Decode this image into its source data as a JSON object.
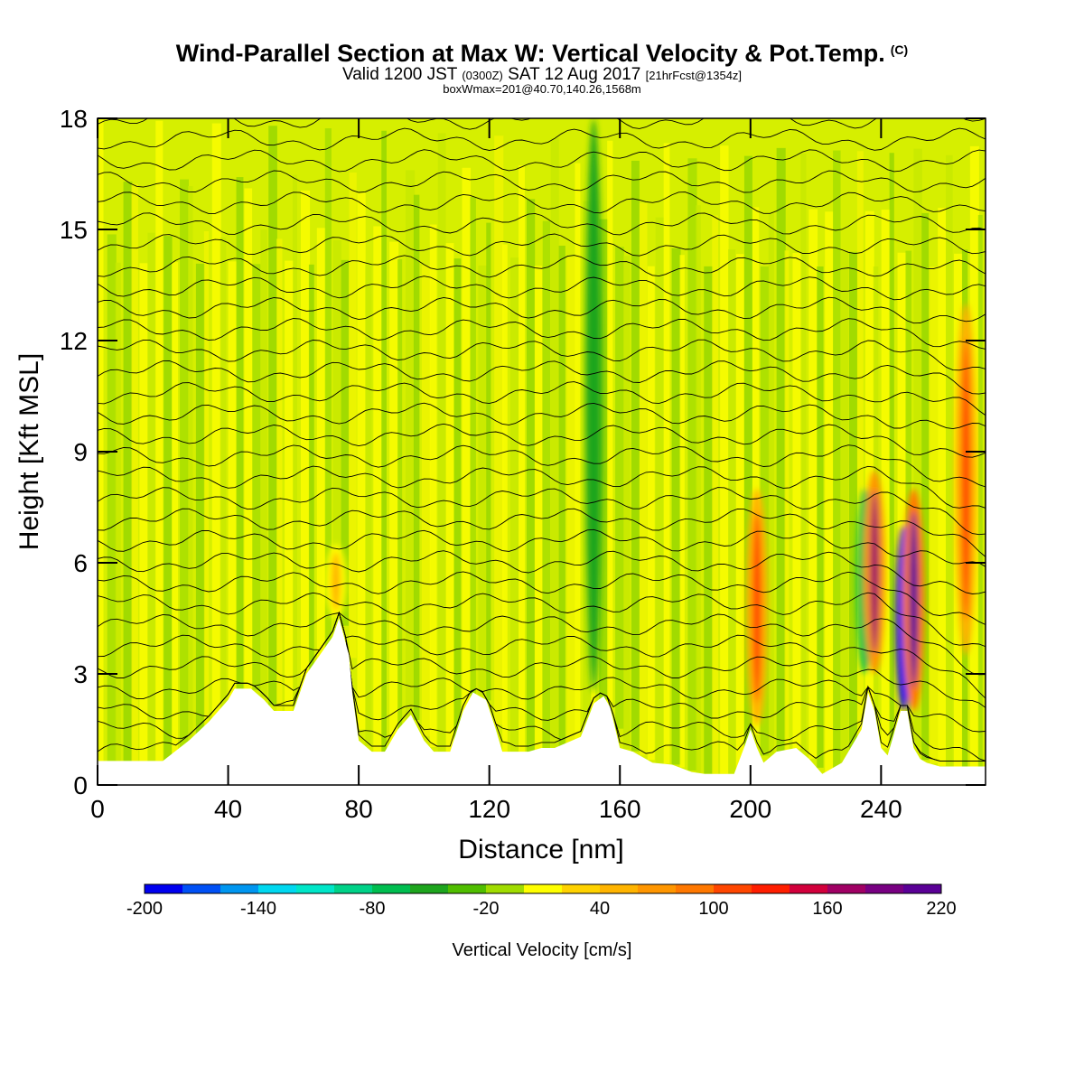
{
  "header": {
    "title": "Wind-Parallel Section at Max W: Vertical Velocity & Pot.Temp.",
    "title_mark": "(C)",
    "valid_prefix": "Valid 1200 JST",
    "valid_utc": "(0300Z)",
    "valid_date": "SAT 12 Aug 2017",
    "valid_fcst": "[21hrFcst@1354z]",
    "subtitle": "boxWmax=201@40.70,140.26,1568m"
  },
  "chart_data": {
    "type": "heatmap",
    "xlabel": "Distance [nm]",
    "ylabel": "Height [Kft MSL]",
    "xlim": [
      0,
      272
    ],
    "ylim": [
      0,
      18
    ],
    "xticks": [
      "0",
      "40",
      "80",
      "120",
      "160",
      "200",
      "240"
    ],
    "yticks": [
      "0",
      "3",
      "6",
      "9",
      "12",
      "15",
      "18"
    ],
    "grid": false,
    "background_field": "vertical velocity mostly -40 to +20 cm/s (green/yellow bands)",
    "contours": "potential temperature, black lines every ~1 K",
    "terrain_profile": {
      "x": [
        0,
        20,
        28,
        34,
        40,
        42,
        47,
        51,
        54,
        60,
        62,
        64,
        68,
        72,
        74,
        77,
        78,
        80,
        84,
        88,
        92,
        96,
        100,
        103,
        108,
        112,
        115,
        119,
        122,
        124,
        128,
        132,
        136,
        140,
        148,
        152,
        155,
        157,
        160,
        164,
        170,
        176,
        182,
        186,
        195,
        198,
        200,
        202,
        204,
        208,
        214,
        218,
        222,
        228,
        234,
        236,
        238,
        240,
        242,
        246,
        248,
        250,
        252,
        254,
        258,
        265,
        272
      ],
      "y": [
        0.65,
        0.65,
        1.2,
        1.7,
        2.3,
        2.6,
        2.6,
        2.3,
        2.0,
        2.0,
        2.5,
        3.0,
        3.5,
        4.0,
        4.5,
        3.5,
        2.5,
        1.2,
        0.9,
        0.9,
        1.5,
        1.9,
        1.2,
        0.9,
        0.9,
        2.0,
        2.5,
        2.3,
        1.5,
        0.9,
        0.9,
        0.9,
        1.0,
        1.0,
        1.3,
        2.2,
        2.4,
        2.1,
        1.0,
        0.9,
        0.6,
        0.55,
        0.35,
        0.3,
        0.3,
        1.0,
        1.5,
        1.0,
        0.6,
        0.9,
        1.0,
        0.7,
        0.3,
        0.6,
        1.5,
        2.5,
        2.0,
        1.0,
        0.8,
        2.0,
        2.0,
        1.0,
        0.7,
        0.6,
        0.5,
        0.5,
        0.5
      ]
    },
    "updraft_plumes": [
      {
        "x": 73,
        "bottom": 4.5,
        "top": 6.5,
        "peak_cm_s": 40
      },
      {
        "x": 202,
        "bottom": 1.6,
        "top": 8.0,
        "peak_cm_s": 100
      },
      {
        "x": 238,
        "bottom": 3.0,
        "top": 8.5,
        "peak_cm_s": 160
      },
      {
        "x": 250,
        "bottom": 2.0,
        "top": 8.0,
        "peak_cm_s": 201
      },
      {
        "x": 266,
        "bottom": 3.5,
        "top": 13.0,
        "peak_cm_s": 100
      }
    ],
    "downdraft_plumes": [
      {
        "x": 152,
        "bottom": 2.5,
        "top": 18.0,
        "peak_cm_s": -60
      },
      {
        "x": 235,
        "bottom": 3.0,
        "top": 8.0,
        "peak_cm_s": -80
      },
      {
        "x": 247,
        "bottom": 2.0,
        "top": 7.0,
        "peak_cm_s": -200
      }
    ]
  },
  "colorbar": {
    "label": "Vertical Velocity [cm/s]",
    "min": -200,
    "max": 220,
    "step": 20,
    "tick_labels": [
      "-200",
      "-140",
      "-80",
      "-20",
      "40",
      "100",
      "160",
      "220"
    ],
    "colors": [
      "#0000ef",
      "#0050f5",
      "#0096f0",
      "#00d8f0",
      "#00e6c8",
      "#00d288",
      "#00be50",
      "#1ea51e",
      "#50be00",
      "#a0dc00",
      "#ffff00",
      "#ffd200",
      "#ffb400",
      "#ff9600",
      "#ff7800",
      "#ff4600",
      "#ff1e00",
      "#d2003c",
      "#a00064",
      "#780082",
      "#5a0096"
    ]
  }
}
